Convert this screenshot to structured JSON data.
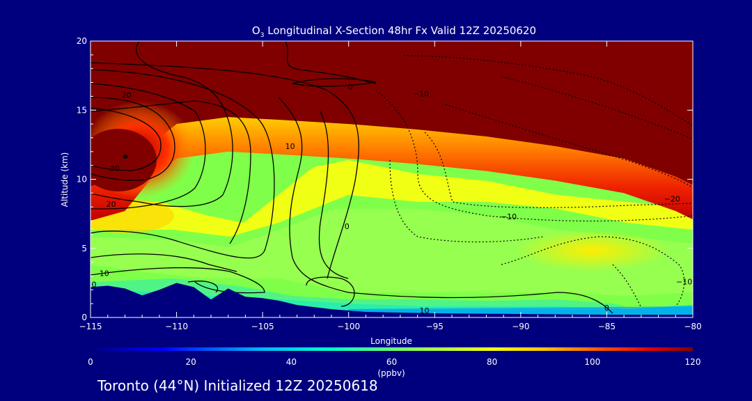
{
  "chart_data": {
    "type": "heatmap",
    "title": {
      "prefix": "O",
      "subscript": "3",
      "rest": " Longitudinal X-Section 48hr  Fx Valid 12Z 20250620"
    },
    "xlabel": "Longitude",
    "ylabel": "Altitude (km)",
    "xlim": [
      -115,
      -80
    ],
    "ylim": [
      0,
      20
    ],
    "xticks": [
      -115,
      -110,
      -105,
      -100,
      -95,
      -90,
      -85,
      -80
    ],
    "xtick_labels": [
      "−115",
      "−110",
      "−105",
      "−100",
      "−95",
      "−90",
      "−85",
      "−80"
    ],
    "yticks": [
      0,
      5,
      10,
      15,
      20
    ],
    "ytick_labels": [
      "0",
      "5",
      "10",
      "15",
      "20"
    ],
    "colorbar": {
      "range": [
        0,
        120
      ],
      "ticks": [
        0,
        20,
        40,
        60,
        80,
        100,
        120
      ],
      "tick_labels": [
        "0",
        "20",
        "40",
        "60",
        "80",
        "100",
        "120"
      ],
      "unit": "(ppbv)"
    },
    "grid": false,
    "tropopause_km": [
      [
        -115,
        9.5
      ],
      [
        -113,
        10.2
      ],
      [
        -111.5,
        12.5
      ],
      [
        -110,
        14.0
      ],
      [
        -107,
        14.5
      ],
      [
        -104,
        14.3
      ],
      [
        -100,
        14.0
      ],
      [
        -96,
        13.6
      ],
      [
        -92,
        13.1
      ],
      [
        -88,
        12.4
      ],
      [
        -84,
        11.5
      ],
      [
        -81,
        10.2
      ],
      [
        -80,
        9.6
      ]
    ],
    "terrain_km": [
      [
        -115,
        2.2
      ],
      [
        -114,
        2.3
      ],
      [
        -113,
        2.1
      ],
      [
        -112,
        1.6
      ],
      [
        -111,
        2.0
      ],
      [
        -110,
        2.5
      ],
      [
        -109,
        2.2
      ],
      [
        -108,
        1.3
      ],
      [
        -107,
        2.1
      ],
      [
        -106,
        1.5
      ],
      [
        -105,
        1.4
      ],
      [
        -104,
        1.2
      ],
      [
        -103,
        0.9
      ],
      [
        -101,
        0.6
      ],
      [
        -99,
        0.4
      ],
      [
        -95,
        0.3
      ],
      [
        -90,
        0.25
      ],
      [
        -85,
        0.2
      ],
      [
        -80,
        0.2
      ]
    ],
    "contour_labels": [
      {
        "text": "20",
        "lon": -112.9,
        "alt": 15.9
      },
      {
        "text": "30",
        "lon": -113.6,
        "alt": 10.6
      },
      {
        "text": "20",
        "lon": -113.8,
        "alt": 8.0
      },
      {
        "text": "10",
        "lon": -114.2,
        "alt": 3.0
      },
      {
        "text": "0",
        "lon": -114.8,
        "alt": 2.2
      },
      {
        "text": "10",
        "lon": -103.4,
        "alt": 12.2
      },
      {
        "text": "0",
        "lon": -99.9,
        "alt": 16.5
      },
      {
        "text": "−10",
        "lon": -95.8,
        "alt": 16.0
      },
      {
        "text": "0",
        "lon": -100.1,
        "alt": 6.4
      },
      {
        "text": "−10",
        "lon": -90.7,
        "alt": 7.1
      },
      {
        "text": "−20",
        "lon": -81.2,
        "alt": 8.4
      },
      {
        "text": "−10",
        "lon": -80.5,
        "alt": 2.4
      },
      {
        "text": "10",
        "lon": -95.6,
        "alt": 0.3
      },
      {
        "text": "0",
        "lon": -85.0,
        "alt": 0.5
      }
    ]
  },
  "footer": {
    "text": "Toronto (44°N) Initialized 12Z 20250618"
  }
}
